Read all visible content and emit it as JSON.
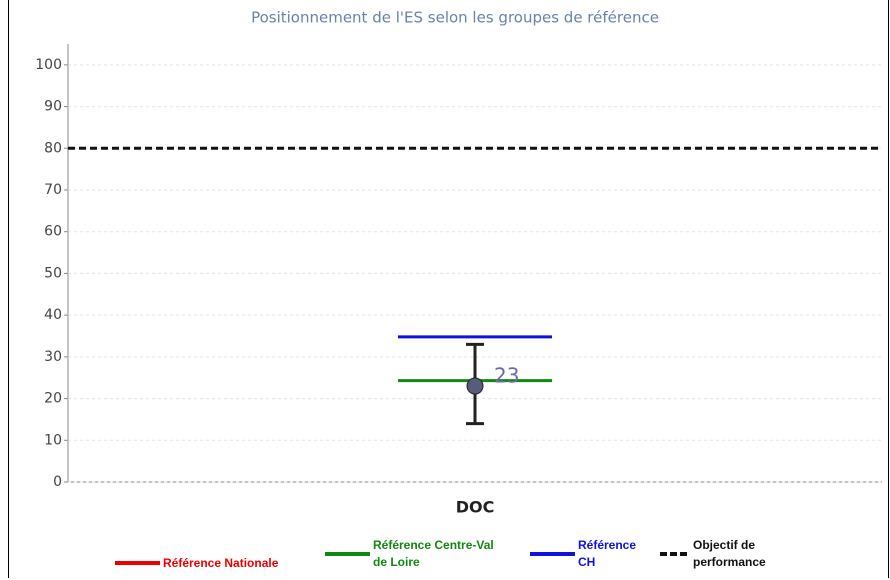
{
  "chart_data": {
    "type": "dot",
    "title": "Positionnement de l'ES selon les groupes de référence",
    "categories": [
      "DOC"
    ],
    "point": {
      "values": [
        23
      ],
      "error_low": [
        14
      ],
      "error_high": [
        33
      ],
      "color": "#565c7a",
      "label_color": "#6a6aaa"
    },
    "series": [
      {
        "name": "Référence Nationale",
        "color": "#ee0000",
        "values": [
          null
        ]
      },
      {
        "name": "Référence Centre-Val de Loire",
        "color": "#118811",
        "values": [
          24.3
        ]
      },
      {
        "name": "Référence CH",
        "color": "#1111dd",
        "values": [
          34.8
        ]
      }
    ],
    "target": {
      "name": "Objectif de performance",
      "value": 80,
      "color": "#111111",
      "dashed": true
    },
    "ylim": [
      0,
      105
    ],
    "yticks": [
      0,
      10,
      20,
      30,
      40,
      50,
      60,
      70,
      80,
      90,
      100
    ],
    "grid": true
  }
}
